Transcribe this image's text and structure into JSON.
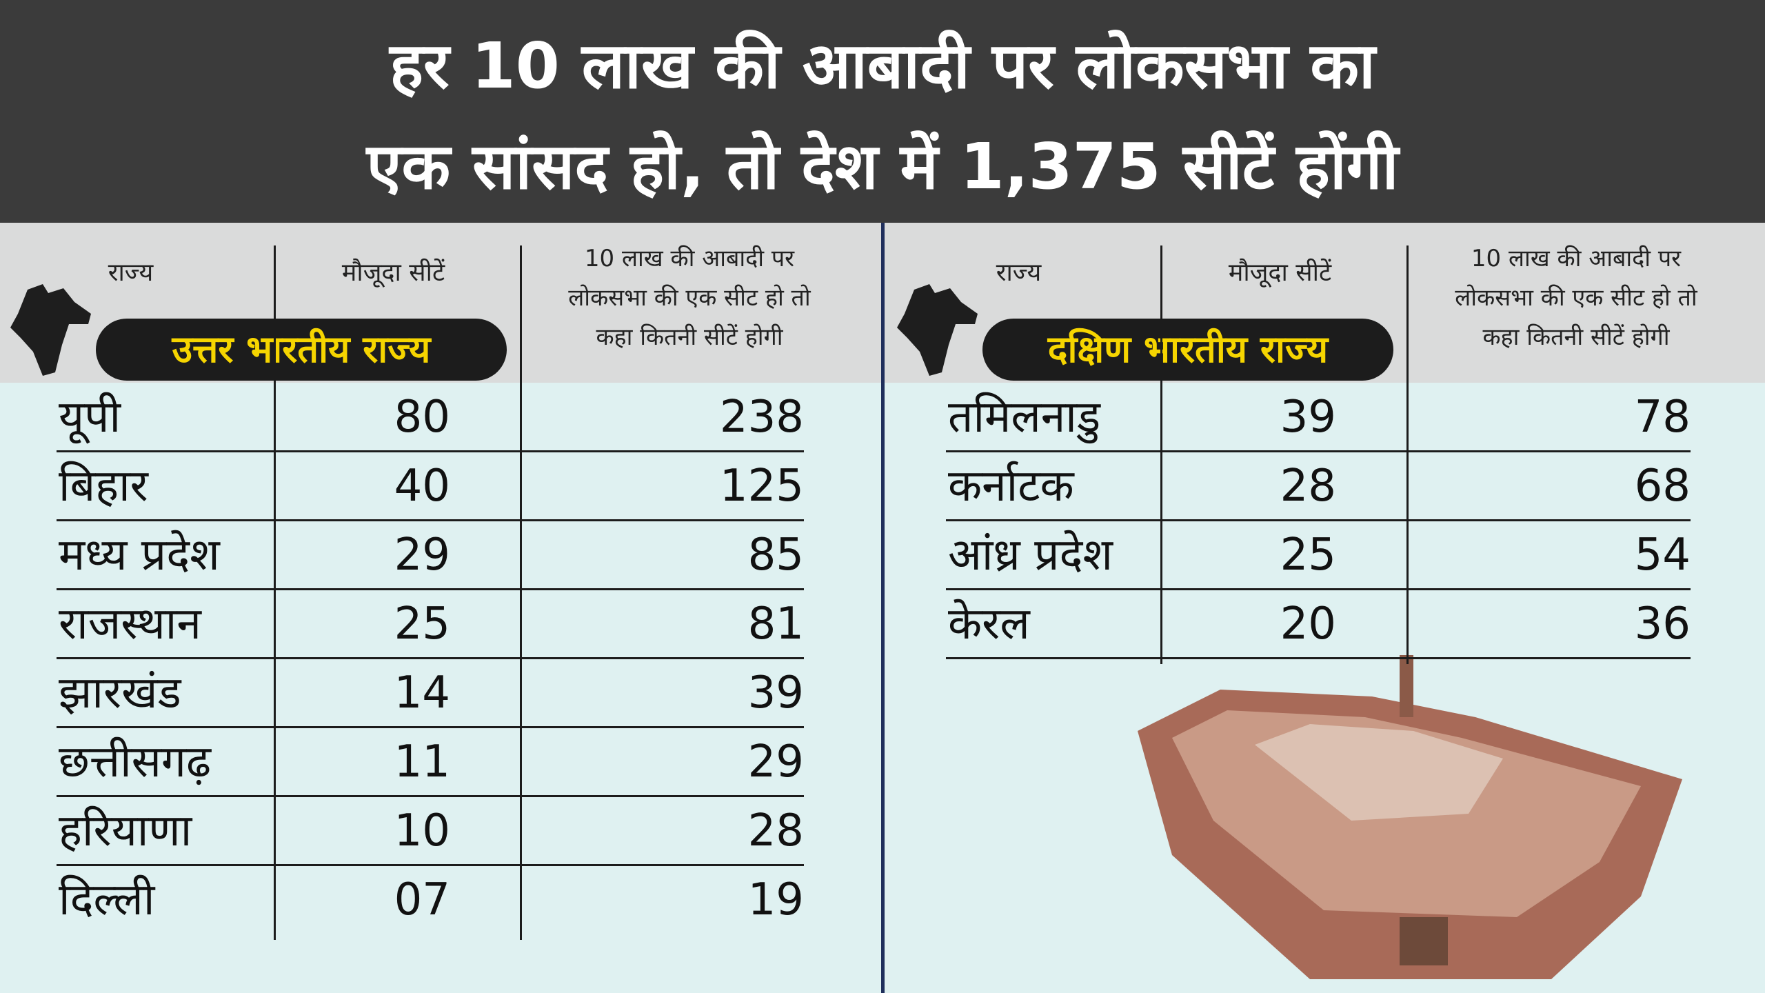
{
  "title": {
    "line1": "हर 10 लाख की आबादी पर लोकसभा का",
    "line2": "एक सांसद हो, तो देश में 1,375 सीटें होंगी"
  },
  "tables": [
    {
      "headers": [
        "राज्य",
        "मौजूदा सीटें",
        [
          "10 लाख की आबादी पर",
          "लोकसभा की एक सीट हो तो",
          "कहा कितनी सीटें होगी"
        ]
      ],
      "label": "उत्तर भारतीय राज्य",
      "rows": [
        [
          "यूपी",
          "80",
          "238"
        ],
        [
          "बिहार",
          "40",
          "125"
        ],
        [
          "मध्य प्रदेश",
          "29",
          "85"
        ],
        [
          "राजस्थान",
          "25",
          "81"
        ],
        [
          "झारखंड",
          "14",
          "39"
        ],
        [
          "छत्तीसगढ़",
          "11",
          "29"
        ],
        [
          "हरियाणा",
          "10",
          "28"
        ],
        [
          "दिल्ली",
          "07",
          "19"
        ]
      ]
    },
    {
      "headers": [
        "राज्य",
        "मौजूदा सीटें",
        [
          "10 लाख की आबादी पर",
          "लोकसभा की एक सीट हो तो",
          "कहा कितनी सीटें होगी"
        ]
      ],
      "label": "दक्षिण भारतीय राज्य",
      "rows": [
        [
          "तमिलनाडु",
          "39",
          "78"
        ],
        [
          "कर्नाटक",
          "28",
          "68"
        ],
        [
          "आंध्र प्रदेश",
          "25",
          "54"
        ],
        [
          "केरल",
          "20",
          "36"
        ]
      ]
    }
  ]
}
